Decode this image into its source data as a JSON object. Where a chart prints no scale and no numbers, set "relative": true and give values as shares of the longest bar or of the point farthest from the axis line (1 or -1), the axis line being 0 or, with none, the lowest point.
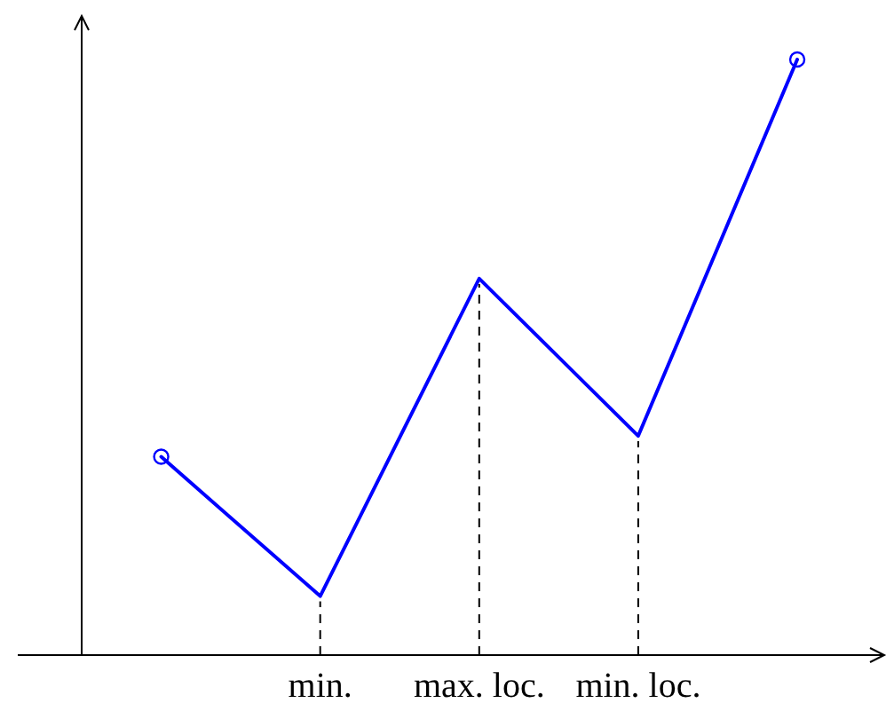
{
  "chart_data": {
    "type": "line",
    "relative": true,
    "categories": [
      null,
      "min.",
      "max. loc.",
      "min. loc.",
      null
    ],
    "series": [
      {
        "color": "#0000ff",
        "values": [
          0.333,
          0.099,
          0.632,
          0.368,
          1
        ],
        "marker": "none"
      },
      {
        "type": "scatter",
        "color": "#0000ff",
        "values": [
          0.333,
          null,
          null,
          null,
          1
        ],
        "marker": "circle"
      }
    ],
    "ref_lines": [
      {
        "axis": "x",
        "value": "min.",
        "line_style": "dashed"
      },
      {
        "axis": "x",
        "value": "max. loc.",
        "line_style": "dashed"
      },
      {
        "axis": "x",
        "value": "min. loc.",
        "line_style": "dashed"
      }
    ],
    "grid": false,
    "legend": false
  }
}
